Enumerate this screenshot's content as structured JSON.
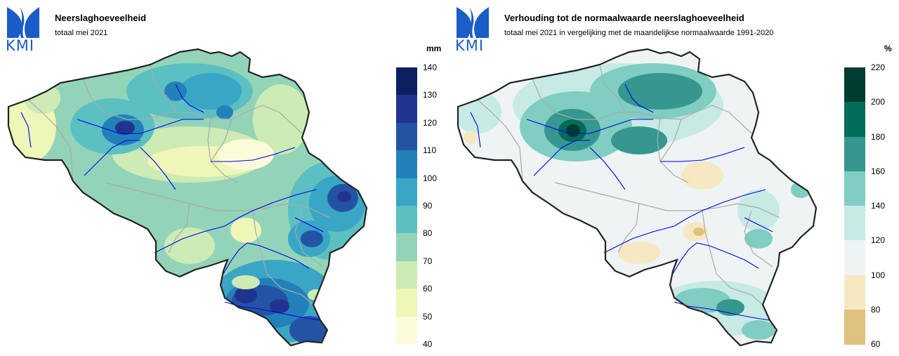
{
  "left_panel": {
    "logo_text": "KMI",
    "title": "Neerslaghoeveelheid",
    "subtitle": "totaal mei 2021",
    "unit": "mm",
    "legend": {
      "ticks": [
        "140",
        "130",
        "120",
        "110",
        "100",
        "90",
        "80",
        "70",
        "60",
        "50",
        "40"
      ],
      "colors": [
        "#0d1f5e",
        "#20348f",
        "#2453a4",
        "#2281b9",
        "#3aa6c6",
        "#5cbfc2",
        "#93d4b9",
        "#cdebb4",
        "#eef6b8",
        "#fbfbd9"
      ]
    }
  },
  "right_panel": {
    "logo_text": "KMI",
    "title": "Verhouding tot de normaalwaarde neerslaghoeveelheid",
    "subtitle": "totaal mei 2021 in vergelijking met de maandelijkse normaalwaarde 1991-2020",
    "unit": "%",
    "legend": {
      "ticks": [
        "220",
        "200",
        "180",
        "160",
        "140",
        "120",
        "100",
        "80",
        "60"
      ],
      "colors": [
        "#003c30",
        "#016c59",
        "#35978f",
        "#80cdc1",
        "#c7eae5",
        "#eef4f3",
        "#f6e8c3",
        "#dfc27d"
      ]
    }
  },
  "map_colors": {
    "border": "#222222",
    "province_lines": "#aaaaaa",
    "rivers": "#0000ee"
  }
}
